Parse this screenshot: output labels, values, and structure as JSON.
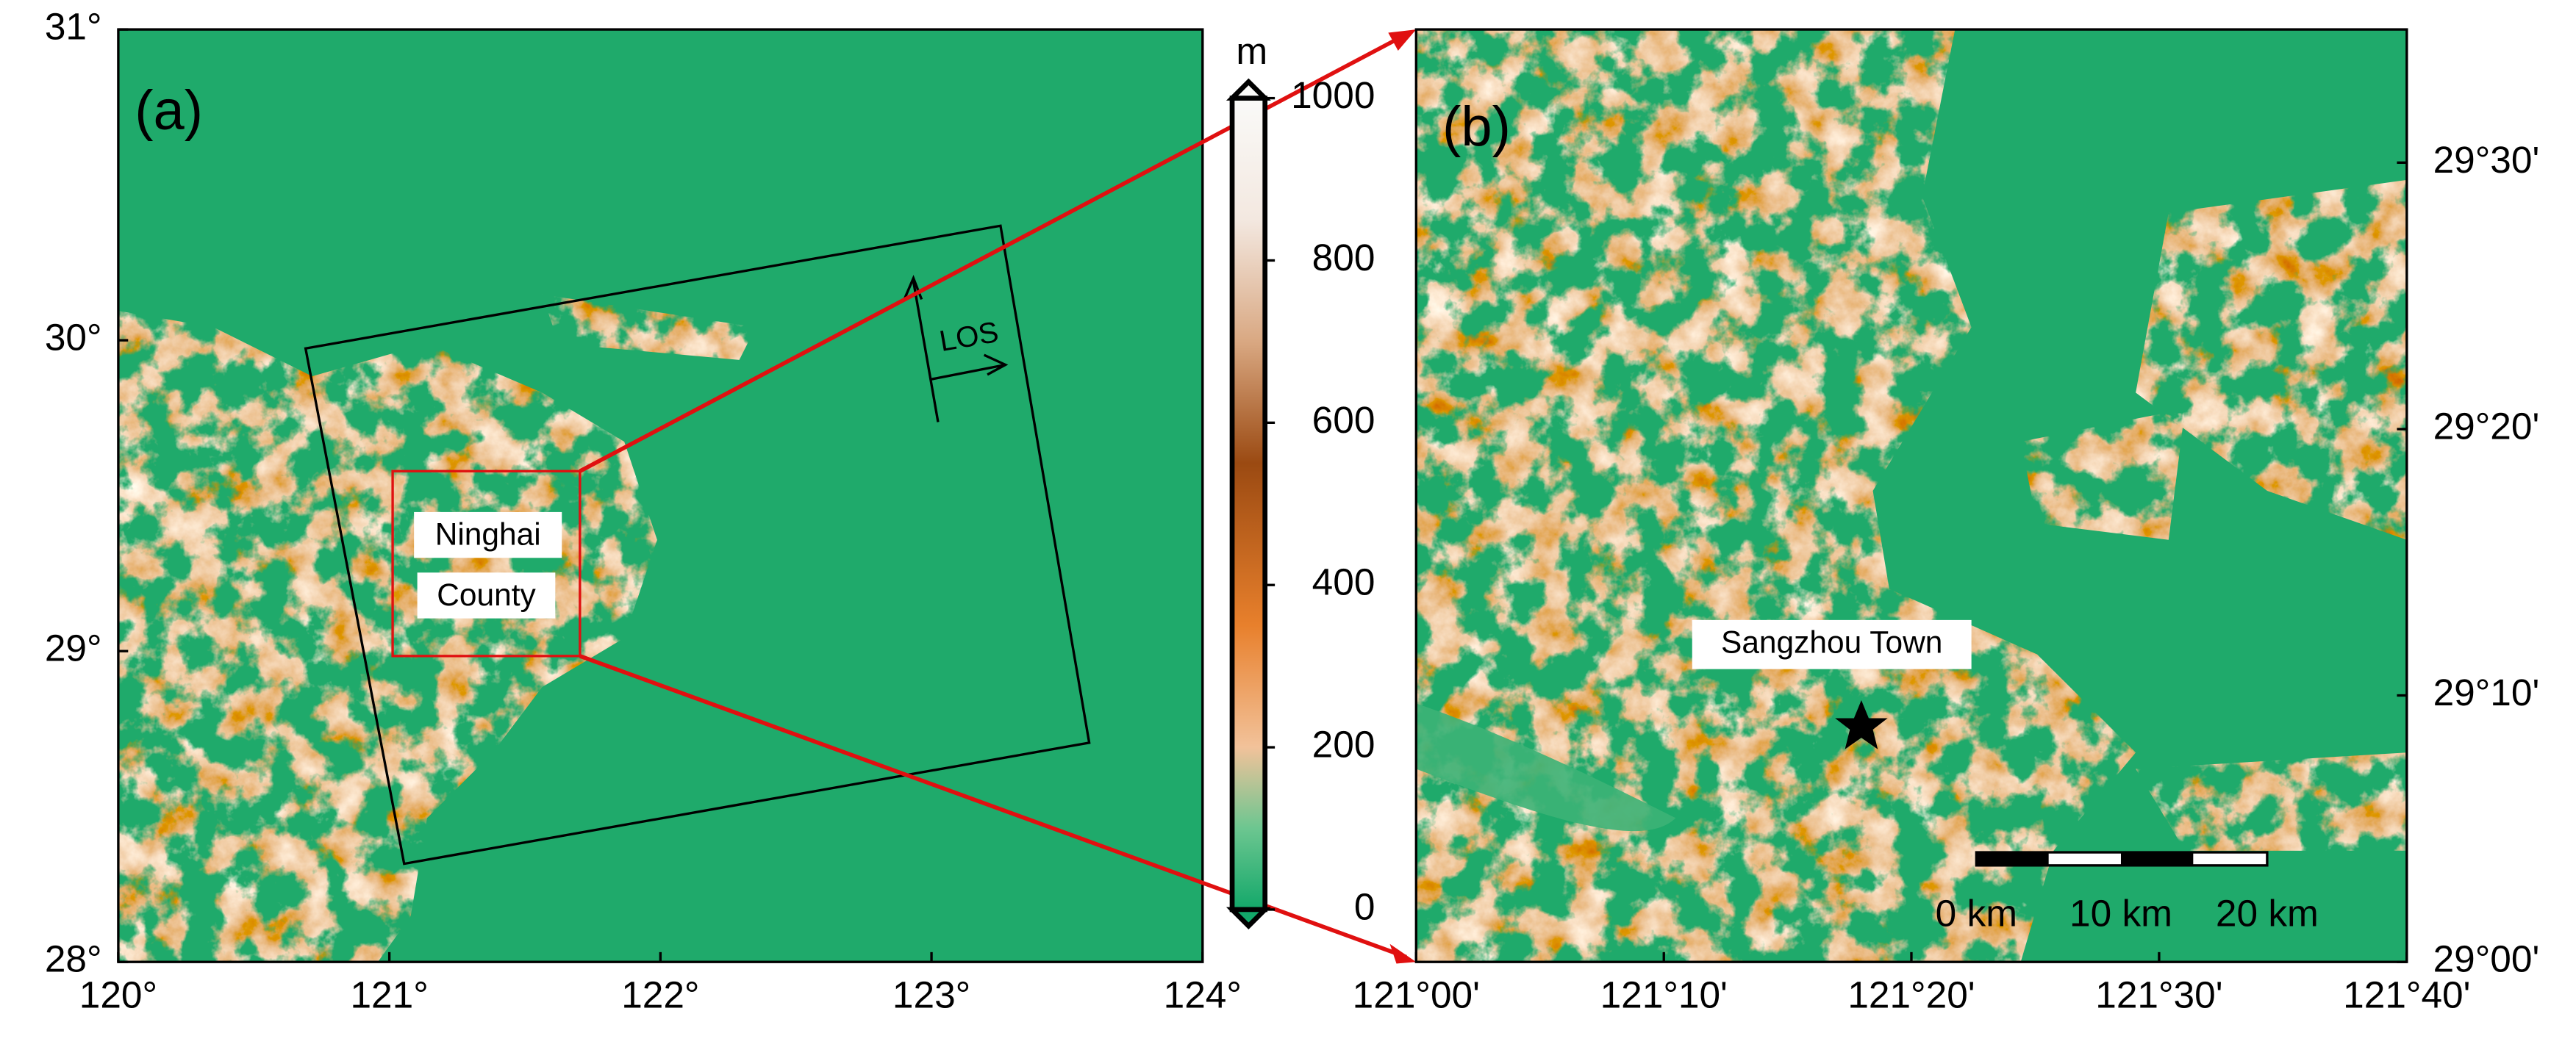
{
  "panel_a": {
    "label": "(a)",
    "xlim": [
      120,
      124
    ],
    "ylim": [
      28,
      31
    ],
    "xticks": [
      {
        "value": 120,
        "label": "120°"
      },
      {
        "value": 121,
        "label": "121°"
      },
      {
        "value": 122,
        "label": "122°"
      },
      {
        "value": 123,
        "label": "123°"
      },
      {
        "value": 124,
        "label": "124°"
      }
    ],
    "yticks": [
      {
        "value": 28,
        "label": "28°"
      },
      {
        "value": 29,
        "label": "29°"
      },
      {
        "value": 30,
        "label": "30°"
      },
      {
        "value": 31,
        "label": "31°"
      }
    ],
    "region_name": [
      "Ninghai",
      "County"
    ],
    "los": "LOS"
  },
  "colorbar": {
    "unit": "m",
    "lim": [
      0,
      1000
    ],
    "ticks": [
      0,
      200,
      400,
      600,
      800,
      1000
    ]
  },
  "panel_b": {
    "label": "(b)",
    "xlim": [
      121,
      121.6667
    ],
    "ylim": [
      29,
      29.5833
    ],
    "xticks": [
      {
        "value": 121,
        "label": "121°00'"
      },
      {
        "value": 121.1667,
        "label": "121°10'"
      },
      {
        "value": 121.3333,
        "label": "121°20'"
      },
      {
        "value": 121.5,
        "label": "121°30'"
      },
      {
        "value": 121.6667,
        "label": "121°40'"
      }
    ],
    "yticks": [
      {
        "value": 29,
        "label": "29°00'"
      },
      {
        "value": 29.1667,
        "label": "29°10'"
      },
      {
        "value": 29.3333,
        "label": "29°20'"
      },
      {
        "value": 29.5,
        "label": "29°30'"
      }
    ],
    "place": "Sangzhou Town",
    "scale_bar": [
      "0 km",
      "10 km",
      "20 km"
    ]
  }
}
